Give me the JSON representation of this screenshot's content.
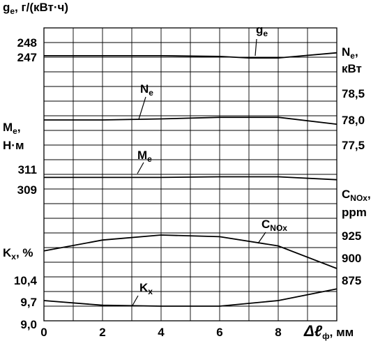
{
  "chart_data": {
    "type": "line",
    "grid": true,
    "x_axis": {
      "label_symbol": "Δℓ",
      "label_sub": "ф",
      "label_unit": ", мм",
      "ticks": [
        "0",
        "2",
        "4",
        "6",
        "8"
      ],
      "range": [
        0,
        10
      ]
    },
    "panels": [
      {
        "id": "ge",
        "axis_side": "left",
        "unit": "g, г/(кВт·ч)",
        "unit_symbol": "g",
        "unit_sub": "e",
        "unit_rest": ", г/(кВт·ч)",
        "ticks": [
          "248",
          "247"
        ],
        "tick_values": [
          248,
          247
        ],
        "series_label": "g",
        "series_label_sub": "e",
        "x": [
          0,
          2,
          4,
          6,
          7,
          8,
          10
        ],
        "y": [
          247.1,
          247.1,
          247.1,
          247.05,
          246.95,
          246.95,
          247.3
        ]
      },
      {
        "id": "Ne",
        "axis_side": "right",
        "unit_symbol": "N",
        "unit_sub": "e",
        "unit_rest": ",",
        "unit_line2": "кВт",
        "ticks": [
          "78,5",
          "78,0",
          "77,5"
        ],
        "tick_values": [
          78.5,
          78.0,
          77.5
        ],
        "series_label": "N",
        "series_label_sub": "e",
        "x": [
          0,
          2,
          4,
          6,
          8,
          10
        ],
        "y": [
          78.0,
          78.0,
          78.02,
          78.05,
          78.05,
          77.92
        ]
      },
      {
        "id": "Me",
        "axis_side": "left",
        "unit_symbol": "M",
        "unit_sub": "e",
        "unit_rest": ",",
        "unit_line2": "Н·м",
        "ticks": [
          "311",
          "309"
        ],
        "tick_values": [
          311,
          309
        ],
        "series_label": "M",
        "series_label_sub": "e",
        "x": [
          0,
          2,
          4,
          6,
          8,
          10
        ],
        "y": [
          310.6,
          310.6,
          310.6,
          310.68,
          310.68,
          310.3
        ]
      },
      {
        "id": "Cnox",
        "axis_side": "right",
        "unit_symbol": "C",
        "unit_sub": "NOx",
        "unit_rest": ",",
        "unit_line2": "ppm",
        "ticks": [
          "925",
          "900",
          "875"
        ],
        "tick_values": [
          925,
          900,
          875
        ],
        "series_label": "C",
        "series_label_sub": "NOx",
        "x": [
          0,
          2,
          4,
          6,
          8,
          10
        ],
        "y": [
          906,
          919,
          925,
          923,
          912,
          885
        ]
      },
      {
        "id": "Kx",
        "axis_side": "left",
        "unit_symbol": "K",
        "unit_sub": "x",
        "unit_rest": ", %",
        "ticks": [
          "10,4",
          "9,7",
          "9,0"
        ],
        "tick_values": [
          10.4,
          9.7,
          9.0
        ],
        "series_label": "K",
        "series_label_sub": "x",
        "x": [
          0,
          2,
          4,
          6,
          8,
          10
        ],
        "y": [
          9.7,
          9.6,
          9.58,
          9.58,
          9.7,
          9.95
        ]
      }
    ]
  }
}
